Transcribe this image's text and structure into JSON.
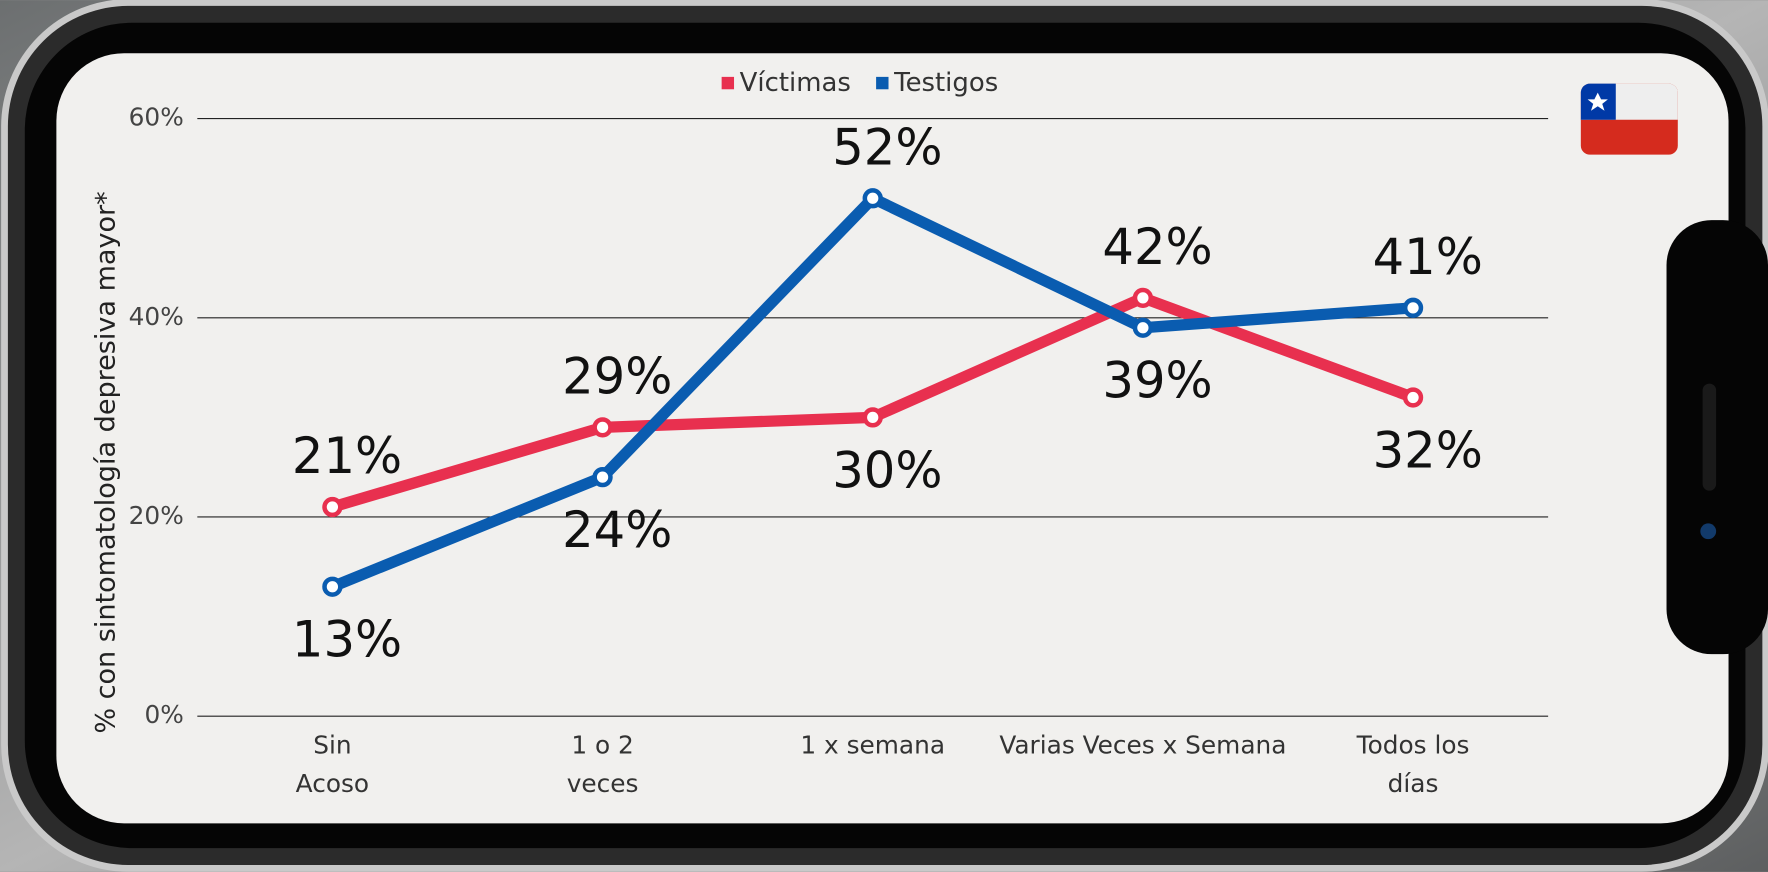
{
  "chart_data": {
    "type": "line",
    "y_label": "% con sintomatología depresiva mayor*",
    "categories": [
      [
        "Sin",
        "Acoso"
      ],
      [
        "1 o 2",
        "veces"
      ],
      [
        "1 x semana"
      ],
      [
        "Varias Veces x Semana"
      ],
      [
        "Todos los",
        "días"
      ]
    ],
    "series": [
      {
        "name": "Víctimas",
        "color": "#e8304f",
        "values": [
          21,
          29,
          30,
          42,
          32
        ],
        "value_labels": [
          "21%",
          "29%",
          "30%",
          "42%",
          "32%"
        ]
      },
      {
        "name": "Testigos",
        "color": "#0a5cb0",
        "values": [
          13,
          24,
          52,
          39,
          41
        ],
        "value_labels": [
          "13%",
          "24%",
          "52%",
          "39%",
          "41%"
        ]
      }
    ],
    "ylim": [
      0,
      60
    ],
    "yticks": [
      {
        "value": 0,
        "label": "0%"
      },
      {
        "value": 20,
        "label": "20%"
      },
      {
        "value": 40,
        "label": "40%"
      },
      {
        "value": 60,
        "label": "60%"
      }
    ],
    "grid": true,
    "legend": "top"
  }
}
